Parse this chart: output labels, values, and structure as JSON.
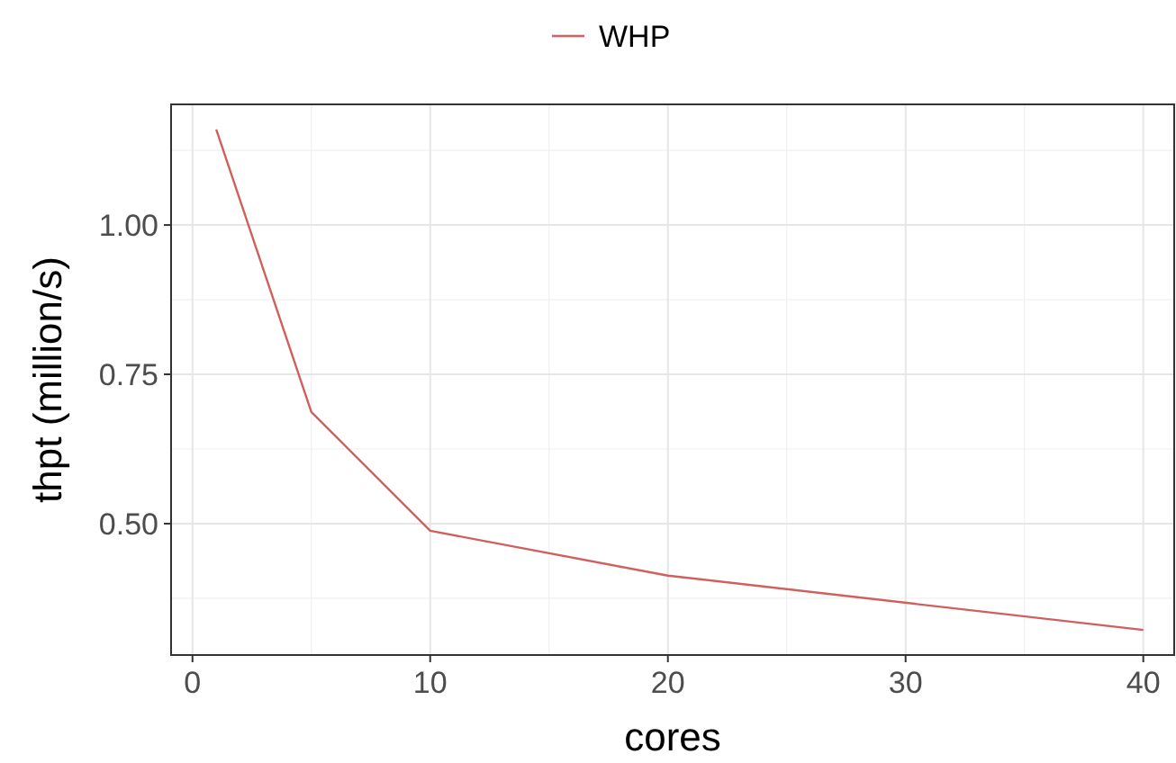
{
  "chart_data": {
    "type": "line",
    "xlabel": "cores",
    "ylabel": "thpt (million/s)",
    "x": [
      1,
      5,
      10,
      20,
      40
    ],
    "series": [
      {
        "name": "WHP",
        "color": "#d0605e",
        "values": [
          1.16,
          0.687,
          0.488,
          0.413,
          0.322
        ]
      }
    ],
    "xlim": [
      -0.9,
      41.3
    ],
    "xticks": [
      0,
      10,
      20,
      30,
      40
    ],
    "ylim": [
      0.28,
      1.202
    ],
    "yticks": [
      {
        "value": 0.5,
        "label": "0.50"
      },
      {
        "value": 0.75,
        "label": "0.75"
      },
      {
        "value": 1.0,
        "label": "1.00"
      }
    ],
    "grid": true,
    "legend": "top",
    "marker": "none",
    "line_style": "solid"
  }
}
